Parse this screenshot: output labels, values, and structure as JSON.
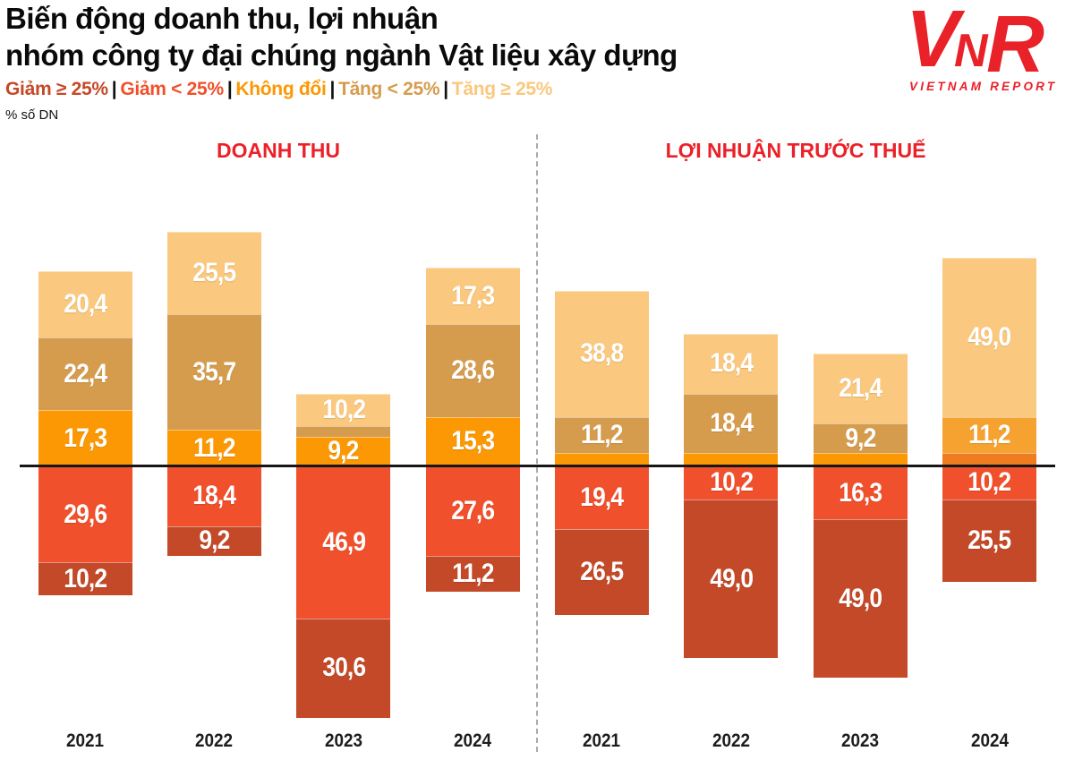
{
  "title": {
    "line1": "Biến động doanh thu, lợi nhuận",
    "line2": "nhóm công ty đại chúng ngành Vật liệu xây dựng"
  },
  "unit_label": "% số DN",
  "legend": {
    "separator": "|",
    "items": [
      {
        "label": "Giảm ≥ 25%",
        "color": "#c44928"
      },
      {
        "label": "Giảm < 25%",
        "color": "#f0502b"
      },
      {
        "label": "Không đổi",
        "color": "#fb9803"
      },
      {
        "label": "Tăng < 25%",
        "color": "#d69c4e"
      },
      {
        "label": "Tăng ≥ 25%",
        "color": "#fac87e"
      }
    ]
  },
  "logo": {
    "mark": "VNR",
    "name": "VIETNAM REPORT",
    "color": "#e92128"
  },
  "chart_data": {
    "type": "bar",
    "subtype": "diverging_stacked_percent",
    "title": "Biến động doanh thu, lợi nhuận nhóm công ty đại chúng ngành Vật liệu xây dựng",
    "unit": "% số DN",
    "baseline_value": 0,
    "categories": [
      "Giảm ≥ 25%",
      "Giảm < 25%",
      "Không đổi",
      "Tăng < 25%",
      "Tăng ≥ 25%"
    ],
    "colors": {
      "giam_ge25": "#c44928",
      "giam_lt25": "#f0502b",
      "khong_doi": "#fb9803",
      "tang_lt25": "#d69c4e",
      "tang_ge25": "#fac87e"
    },
    "panels": [
      {
        "title": "DOANH THU",
        "years": [
          "2021",
          "2022",
          "2023",
          "2024"
        ],
        "bars": [
          {
            "year": "2021",
            "above": [
              {
                "key": "tang_ge25",
                "category": "Tăng ≥ 25%",
                "value": 20.4,
                "label": "20,4"
              },
              {
                "key": "tang_lt25",
                "category": "Tăng < 25%",
                "value": 22.4,
                "label": "22,4"
              },
              {
                "key": "khong_doi",
                "category": "Không đổi",
                "value": 17.3,
                "label": "17,3"
              }
            ],
            "below": [
              {
                "key": "giam_lt25",
                "category": "Giảm < 25%",
                "value": 29.6,
                "label": "29,6"
              },
              {
                "key": "giam_ge25",
                "category": "Giảm ≥ 25%",
                "value": 10.2,
                "label": "10,2"
              }
            ]
          },
          {
            "year": "2022",
            "above": [
              {
                "key": "tang_ge25",
                "category": "Tăng ≥ 25%",
                "value": 25.5,
                "label": "25,5"
              },
              {
                "key": "tang_lt25",
                "category": "Tăng < 25%",
                "value": 35.7,
                "label": "35,7"
              },
              {
                "key": "khong_doi",
                "category": "Không đổi",
                "value": 11.2,
                "label": "11,2"
              }
            ],
            "below": [
              {
                "key": "giam_lt25",
                "category": "Giảm < 25%",
                "value": 18.4,
                "label": "18,4"
              },
              {
                "key": "giam_ge25",
                "category": "Giảm ≥ 25%",
                "value": 9.2,
                "label": "9,2"
              }
            ]
          },
          {
            "year": "2023",
            "above": [
              {
                "key": "tang_ge25",
                "category": "Tăng ≥ 25%",
                "value": 10.2,
                "label": "10,2"
              },
              {
                "key": "tang_lt25",
                "category": "Tăng < 25%",
                "value": 3.1,
                "label": ""
              },
              {
                "key": "khong_doi",
                "category": "Không đổi",
                "value": 9.2,
                "label": "9,2"
              }
            ],
            "below": [
              {
                "key": "giam_lt25",
                "category": "Giảm < 25%",
                "value": 46.9,
                "label": "46,9"
              },
              {
                "key": "giam_ge25",
                "category": "Giảm ≥ 25%",
                "value": 30.6,
                "label": "30,6"
              }
            ]
          },
          {
            "year": "2024",
            "above": [
              {
                "key": "tang_ge25",
                "category": "Tăng ≥ 25%",
                "value": 17.3,
                "label": "17,3"
              },
              {
                "key": "tang_lt25",
                "category": "Tăng < 25%",
                "value": 28.6,
                "label": "28,6"
              },
              {
                "key": "khong_doi",
                "category": "Không đổi",
                "value": 15.3,
                "label": "15,3"
              }
            ],
            "below": [
              {
                "key": "giam_lt25",
                "category": "Giảm < 25%",
                "value": 27.6,
                "label": "27,6"
              },
              {
                "key": "giam_ge25",
                "category": "Giảm ≥ 25%",
                "value": 11.2,
                "label": "11,2"
              }
            ]
          }
        ]
      },
      {
        "title": "LỢI NHUẬN TRƯỚC THUẾ",
        "years": [
          "2021",
          "2022",
          "2023",
          "2024"
        ],
        "bars": [
          {
            "year": "2021",
            "above": [
              {
                "key": "tang_ge25",
                "category": "Tăng ≥ 25%",
                "value": 38.8,
                "label": "38,8"
              },
              {
                "key": "tang_lt25",
                "category": "Tăng < 25%",
                "value": 11.2,
                "label": "11,2"
              },
              {
                "key": "khong_doi",
                "category": "Không đổi",
                "value": 4.1,
                "label": ""
              }
            ],
            "below": [
              {
                "key": "giam_lt25",
                "category": "Giảm < 25%",
                "value": 19.4,
                "label": "19,4"
              },
              {
                "key": "giam_ge25",
                "category": "Giảm ≥ 25%",
                "value": 26.5,
                "label": "26,5"
              }
            ]
          },
          {
            "year": "2022",
            "above": [
              {
                "key": "tang_ge25",
                "category": "Tăng ≥ 25%",
                "value": 18.4,
                "label": "18,4"
              },
              {
                "key": "tang_lt25",
                "category": "Tăng < 25%",
                "value": 18.4,
                "label": "18,4"
              },
              {
                "key": "khong_doi",
                "category": "Không đổi",
                "value": 4.1,
                "label": ""
              }
            ],
            "below": [
              {
                "key": "giam_lt25",
                "category": "Giảm < 25%",
                "value": 10.2,
                "label": "10,2"
              },
              {
                "key": "giam_ge25",
                "category": "Giảm ≥ 25%",
                "value": 49.0,
                "label": "49,0"
              }
            ]
          },
          {
            "year": "2023",
            "above": [
              {
                "key": "tang_ge25",
                "category": "Tăng ≥ 25%",
                "value": 21.4,
                "label": "21,4"
              },
              {
                "key": "tang_lt25",
                "category": "Tăng < 25%",
                "value": 9.2,
                "label": "9,2"
              },
              {
                "key": "khong_doi",
                "category": "Không đổi",
                "value": 4.1,
                "label": ""
              }
            ],
            "below": [
              {
                "key": "giam_lt25",
                "category": "Giảm < 25%",
                "value": 16.3,
                "label": "16,3"
              },
              {
                "key": "giam_ge25",
                "category": "Giảm ≥ 25%",
                "value": 49.0,
                "label": "49,0"
              }
            ]
          },
          {
            "year": "2024",
            "above": [
              {
                "key": "tang_ge25",
                "category": "Tăng ≥ 25%",
                "value": 49.0,
                "label": "49,0"
              },
              {
                "key": "tang_lt25",
                "category": "Tăng < 25%",
                "value": 11.2,
                "label": "11,2",
                "color": "#f6a230"
              },
              {
                "key": "khong_doi",
                "category": "Không đổi",
                "value": 4.1,
                "label": "",
                "color": "#ef7d20"
              }
            ],
            "below": [
              {
                "key": "giam_lt25",
                "category": "Giảm < 25%",
                "value": 10.2,
                "label": "10,2"
              },
              {
                "key": "giam_ge25",
                "category": "Giảm ≥ 25%",
                "value": 25.5,
                "label": "25,5"
              }
            ]
          }
        ]
      }
    ]
  }
}
